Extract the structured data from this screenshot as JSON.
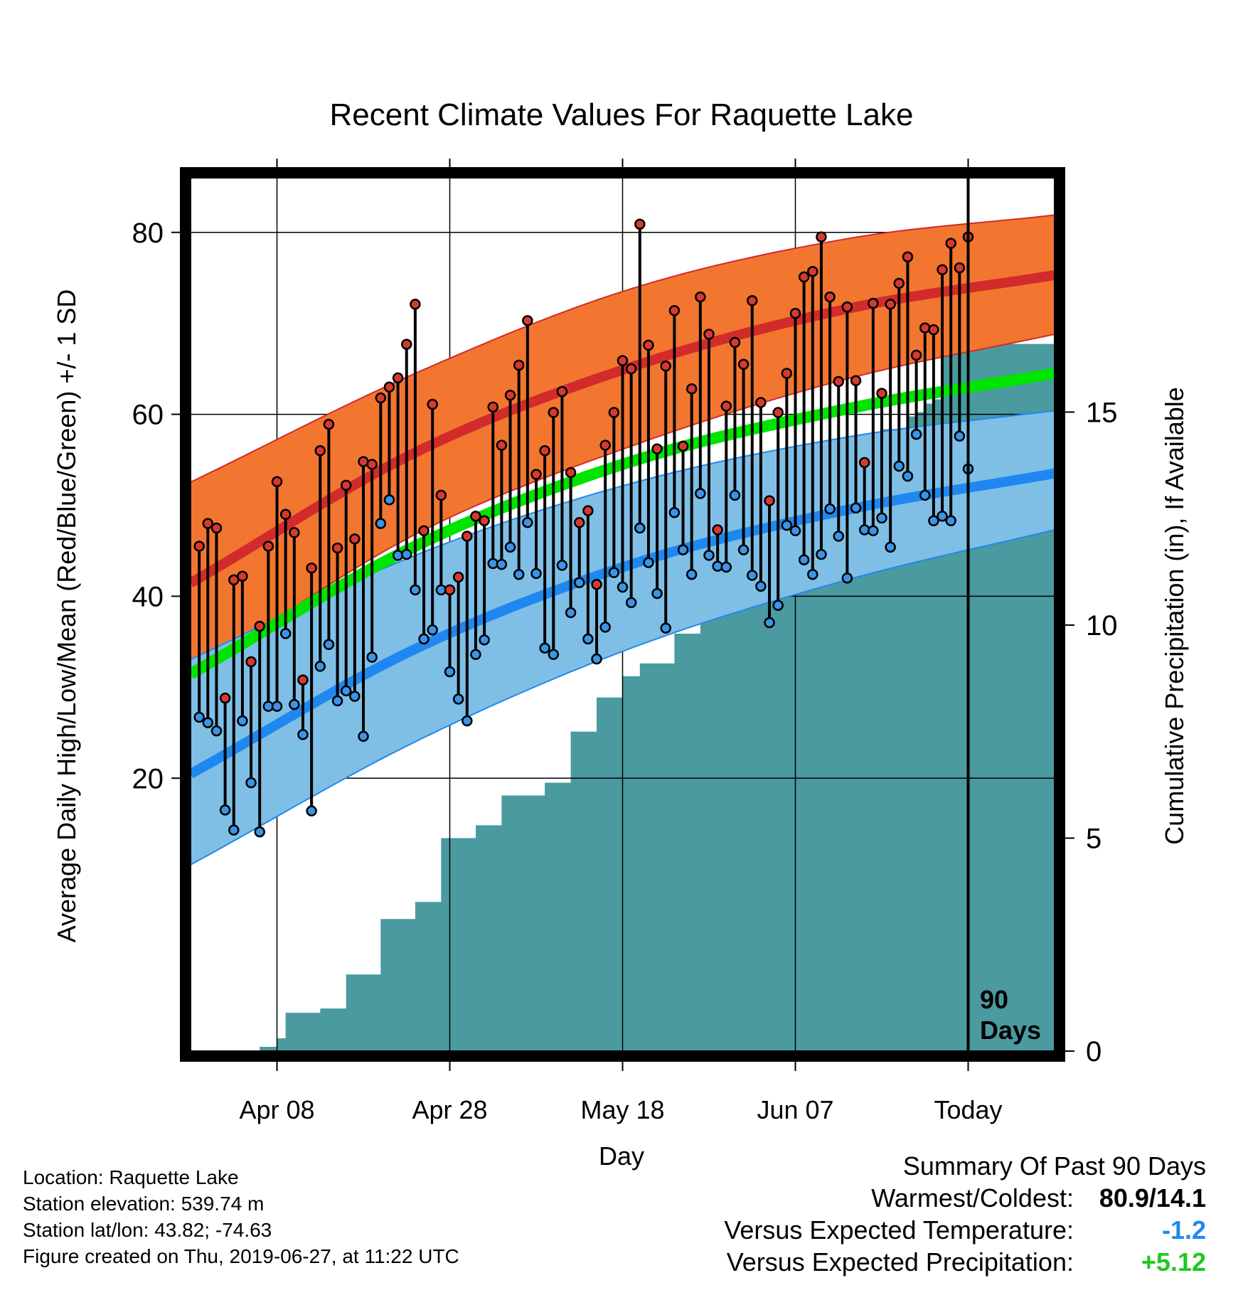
{
  "chart_data": {
    "type": "line",
    "title": "Recent Climate Values For Raquette Lake",
    "xlabel": "Day",
    "ylabel": "Average Daily High/Low/Mean (Red/Blue/Green) +/- 1 SD",
    "y2label": "Cumulative Precipitation (in), If Available",
    "ylim": [
      -10,
      86
    ],
    "y_ticks": [
      "20",
      "40",
      "60",
      "80"
    ],
    "y2lim": [
      0,
      20.5
    ],
    "y2_ticks": [
      "0",
      "5",
      "10",
      "15"
    ],
    "x_ticks": [
      {
        "label": "Apr 08",
        "day": 9
      },
      {
        "label": "Apr 28",
        "day": 29
      },
      {
        "label": "May 18",
        "day": 49
      },
      {
        "label": "Jun 07",
        "day": 69
      },
      {
        "label": "Today",
        "day": 89
      }
    ],
    "x_range_days": [
      -1,
      99
    ],
    "today_marker": {
      "day": 89,
      "label_line1": "90",
      "label_line2": "Days"
    },
    "colors": {
      "high_mean": "#d22b2b",
      "high_band": "#f27630",
      "low_mean": "#1f88f0",
      "low_band": "#7fbfe6",
      "daily_mean": "#00e400",
      "precip": "#4a9aa0"
    },
    "climatology": {
      "high_mean": [
        [
          0,
          42.0
        ],
        [
          25,
          55.8
        ],
        [
          50,
          65.2
        ],
        [
          75,
          71.6
        ],
        [
          99,
          75.3
        ]
      ],
      "high_sd_upper": [
        [
          0,
          53.0
        ],
        [
          25,
          64.5
        ],
        [
          50,
          73.8
        ],
        [
          75,
          79.3
        ],
        [
          99,
          81.9
        ]
      ],
      "high_sd_lower": [
        [
          0,
          32.0
        ],
        [
          25,
          46.8
        ],
        [
          50,
          56.5
        ],
        [
          75,
          63.9
        ],
        [
          99,
          68.8
        ]
      ],
      "daily_mean": [
        [
          0,
          32.0
        ],
        [
          25,
          45.5
        ],
        [
          50,
          54.8
        ],
        [
          75,
          60.6
        ],
        [
          99,
          64.5
        ]
      ],
      "low_mean": [
        [
          0,
          21.0
        ],
        [
          25,
          34.2
        ],
        [
          50,
          43.5
        ],
        [
          75,
          49.5
        ],
        [
          99,
          53.5
        ]
      ],
      "low_sd_upper": [
        [
          0,
          33.5
        ],
        [
          25,
          44.5
        ],
        [
          50,
          52.4
        ],
        [
          75,
          57.5
        ],
        [
          99,
          60.4
        ]
      ],
      "low_sd_lower": [
        [
          0,
          11.0
        ],
        [
          25,
          24.0
        ],
        [
          50,
          34.3
        ],
        [
          75,
          41.8
        ],
        [
          99,
          47.3
        ]
      ]
    },
    "daily_highs": [
      45.5,
      48,
      47.5,
      28.8,
      41.8,
      42.2,
      32.8,
      36.7,
      45.5,
      52.6,
      49,
      47,
      30.8,
      43.1,
      56,
      58.9,
      45.3,
      52.2,
      46.3,
      54.8,
      54.5,
      61.8,
      63,
      64,
      67.7,
      72.1,
      47.2,
      61.1,
      51.1,
      40.7,
      42.1,
      46.6,
      48.8,
      48.3,
      60.8,
      56.6,
      62.1,
      65.4,
      70.3,
      53.4,
      56,
      60.2,
      62.5,
      53.6,
      48.1,
      49.4,
      41.3,
      56.6,
      60.2,
      65.9,
      65,
      80.9,
      67.6,
      56.2,
      65.3,
      71.4,
      56.5,
      62.8,
      72.9,
      68.8,
      47.3,
      60.9,
      67.9,
      65.5,
      72.5,
      61.3,
      50.5,
      60.2,
      64.5,
      71.1,
      75.1,
      75.7,
      79.5,
      72.9,
      63.6,
      71.8,
      63.7,
      54.7,
      72.2,
      62.3,
      72.1,
      74.4,
      77.3,
      66.5,
      69.5,
      69.3,
      75.9,
      78.8,
      76.1,
      79.5
    ],
    "daily_lows": [
      26.7,
      26.1,
      25.2,
      16.5,
      14.3,
      26.3,
      19.5,
      14.1,
      27.9,
      27.9,
      35.9,
      28.1,
      24.8,
      16.4,
      32.3,
      34.7,
      28.5,
      29.6,
      29,
      24.6,
      33.3,
      48,
      50.6,
      44.5,
      44.6,
      40.7,
      35.3,
      36.3,
      40.7,
      31.7,
      28.7,
      26.3,
      33.6,
      35.2,
      43.6,
      43.5,
      45.4,
      42.4,
      48.1,
      42.5,
      34.3,
      33.6,
      43.4,
      38.2,
      41.5,
      35.3,
      33.1,
      36.6,
      42.6,
      41,
      39.3,
      47.5,
      43.7,
      40.3,
      36.5,
      49.2,
      45.1,
      42.4,
      51.3,
      44.5,
      43.3,
      43.2,
      51.1,
      45.1,
      42.3,
      41.1,
      37.1,
      39,
      47.8,
      47.2,
      44,
      42.4,
      44.6,
      49.6,
      46.6,
      42,
      49.7,
      47.3,
      47.2,
      48.6,
      45.4,
      54.3,
      53.2,
      57.8,
      51.1,
      48.3,
      48.8,
      48.3,
      57.6,
      54
    ],
    "cumulative_precip_steps": [
      [
        0,
        0
      ],
      [
        7,
        0.1
      ],
      [
        9,
        0.3
      ],
      [
        10,
        0.9
      ],
      [
        14,
        1.0
      ],
      [
        17,
        1.8
      ],
      [
        21,
        3.1
      ],
      [
        25,
        3.5
      ],
      [
        28,
        5.0
      ],
      [
        32,
        5.3
      ],
      [
        35,
        6.0
      ],
      [
        40,
        6.3
      ],
      [
        43,
        7.5
      ],
      [
        46,
        8.3
      ],
      [
        49,
        8.8
      ],
      [
        51,
        9.1
      ],
      [
        55,
        9.8
      ],
      [
        58,
        10.2
      ],
      [
        60,
        11.3
      ],
      [
        64,
        11.6
      ],
      [
        67,
        12.2
      ],
      [
        69,
        12.9
      ],
      [
        71,
        13.3
      ],
      [
        73,
        13.6
      ],
      [
        75,
        14.2
      ],
      [
        79,
        14.6
      ],
      [
        82,
        14.9
      ],
      [
        83,
        15.0
      ],
      [
        84,
        15.2
      ],
      [
        85,
        15.3
      ],
      [
        86,
        16.5
      ],
      [
        89,
        16.6
      ],
      [
        99,
        16.6
      ]
    ]
  },
  "footer": {
    "location": "Location: Raquette Lake",
    "elevation": "Station elevation: 539.74 m",
    "latlon": "Station lat/lon: 43.82; -74.63",
    "created": "Figure created on Thu, 2019-06-27, at 11:22 UTC"
  },
  "summary": {
    "heading": "Summary Of Past 90 Days",
    "warm_cold_label": "Warmest/Coldest:",
    "warm_cold_value": "80.9/14.1",
    "temp_label": "Versus Expected Temperature:",
    "temp_value": "-1.2",
    "temp_color": "#1f88f0",
    "precip_label": "Versus Expected Precipitation:",
    "precip_value": "+5.12",
    "precip_color": "#22c722"
  }
}
